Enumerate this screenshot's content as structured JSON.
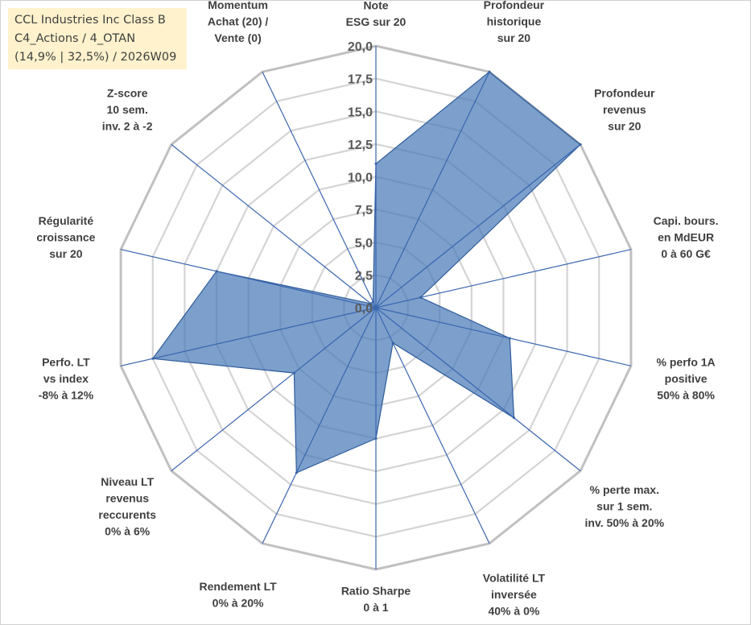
{
  "title": {
    "line1": "CCL Industries Inc Class B",
    "line2": "C4_Actions / 4_OTAN",
    "line3": "(14,9% | 32,5%) / 2026W09"
  },
  "chart_data": {
    "type": "radar",
    "rmin": 0,
    "rmax": 20,
    "ticks": [
      "0,0",
      "2,5",
      "5,0",
      "7,5",
      "10,0",
      "12,5",
      "15,0",
      "17,5",
      "20,0"
    ],
    "axes": [
      {
        "label": [
          "Note",
          "ESG sur 20"
        ]
      },
      {
        "label": [
          "Profondeur",
          "historique",
          "sur 20"
        ]
      },
      {
        "label": [
          "Profondeur",
          "revenus",
          "sur 20"
        ]
      },
      {
        "label": [
          "Capi. bours.",
          "en MdEUR",
          "0 à 60 G€"
        ]
      },
      {
        "label": [
          "% perfo 1A",
          "positive",
          "50% à 80%"
        ]
      },
      {
        "label": [
          "% perte max.",
          "sur 1 sem.",
          "inv. 50% à 20%"
        ]
      },
      {
        "label": [
          "Volatilité LT",
          "inversée",
          "40% à 0%"
        ]
      },
      {
        "label": [
          "Ratio Sharpe",
          "0 à 1"
        ]
      },
      {
        "label": [
          "Rendement LT",
          "0% à 20%"
        ]
      },
      {
        "label": [
          "Niveau LT",
          "revenus",
          "reccurents",
          "0% à 6%"
        ]
      },
      {
        "label": [
          "Perfo. LT",
          "vs index",
          "-8% à 12%"
        ]
      },
      {
        "label": [
          "Régularité",
          "croissance",
          "sur 20"
        ]
      },
      {
        "label": [
          "Z-score",
          "10 sem.",
          "inv. 2 à -2"
        ]
      },
      {
        "label": [
          "Momentum",
          "Achat (20) /",
          "Vente (0)"
        ]
      }
    ],
    "series": [
      {
        "name": "CCL Industries Inc Class B",
        "values": [
          11.0,
          20.0,
          20.0,
          3.5,
          10.5,
          13.5,
          3.0,
          10.0,
          14.0,
          8.0,
          17.5,
          12.5,
          0.5,
          0.5
        ],
        "fill": "#4a7ab8",
        "stroke": "#2f5c9a"
      }
    ]
  }
}
